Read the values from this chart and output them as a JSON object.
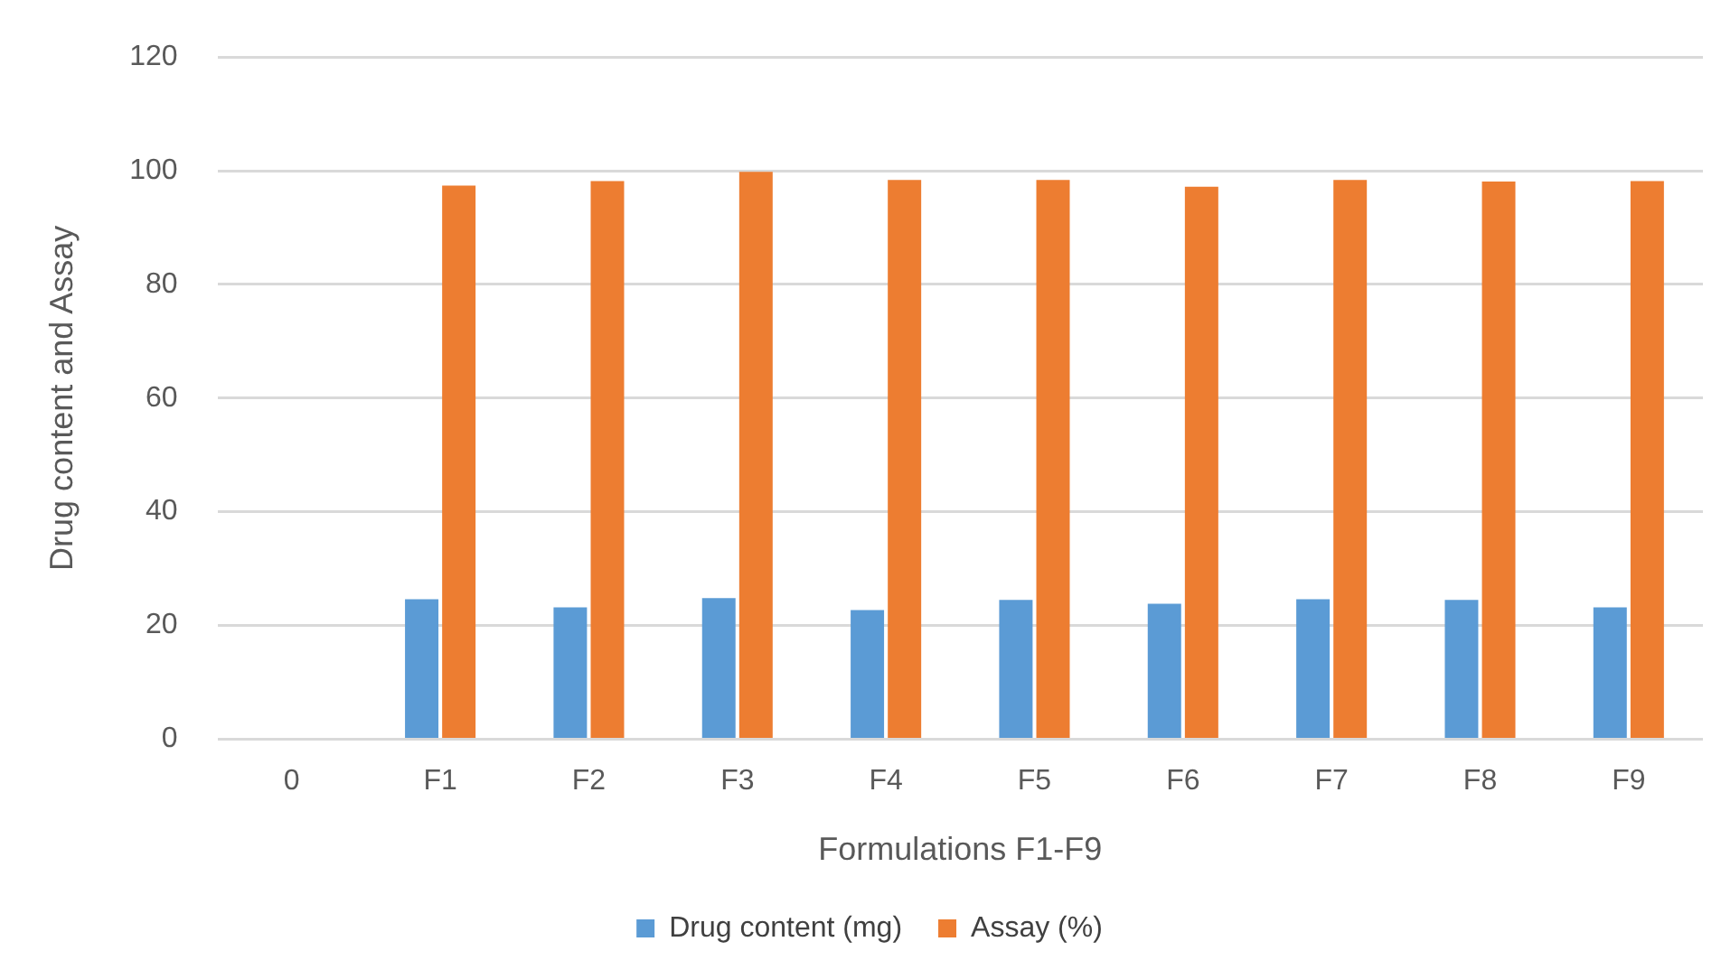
{
  "chart_data": {
    "type": "bar",
    "xlabel": "Formulations F1-F9",
    "ylabel": "Drug content and Assay",
    "categories": [
      "0",
      "F1",
      "F2",
      "F3",
      "F4",
      "F5",
      "F6",
      "F7",
      "F8",
      "F9"
    ],
    "series": [
      {
        "name": "Drug content (mg)",
        "color": "#5b9bd5",
        "values": [
          null,
          24.6,
          23.2,
          24.8,
          22.7,
          24.5,
          23.8,
          24.6,
          24.5,
          23.2
        ]
      },
      {
        "name": "Assay (%)",
        "color": "#ed7d31",
        "values": [
          null,
          97.4,
          98.2,
          99.8,
          98.4,
          98.4,
          97.2,
          98.4,
          98.1,
          98.2
        ]
      }
    ],
    "ylim": [
      0,
      120
    ],
    "yticks": [
      0,
      20,
      40,
      60,
      80,
      100,
      120
    ],
    "grid": "y",
    "legend": "bottom"
  }
}
